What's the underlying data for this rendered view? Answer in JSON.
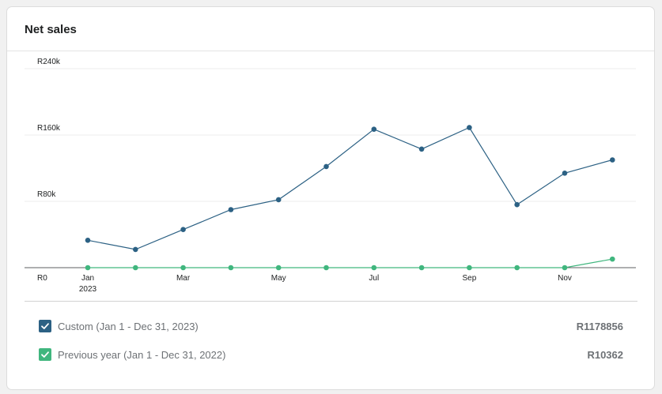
{
  "card": {
    "title": "Net sales"
  },
  "legend": {
    "items": [
      {
        "label": "Custom (Jan 1 - Dec 31, 2023)",
        "value": "R1178856",
        "color": "#2c6184"
      },
      {
        "label": "Previous year (Jan 1 - Dec 31, 2022)",
        "value": "R10362",
        "color": "#40b67e"
      }
    ]
  },
  "chart_data": {
    "type": "line",
    "title": "Net sales",
    "xlabel": "",
    "ylabel": "",
    "ylim": [
      0,
      240000
    ],
    "y_ticks": [
      {
        "value": 0,
        "label": "R0"
      },
      {
        "value": 80000,
        "label": "R80k"
      },
      {
        "value": 160000,
        "label": "R160k"
      },
      {
        "value": 240000,
        "label": "R240k"
      }
    ],
    "x": [
      "Jan",
      "Feb",
      "Mar",
      "Apr",
      "May",
      "Jun",
      "Jul",
      "Aug",
      "Sep",
      "Oct",
      "Nov",
      "Dec"
    ],
    "x_tick_labels": [
      {
        "index": 0,
        "label": "Jan",
        "sublabel": "2023"
      },
      {
        "index": 2,
        "label": "Mar"
      },
      {
        "index": 4,
        "label": "May"
      },
      {
        "index": 6,
        "label": "Jul"
      },
      {
        "index": 8,
        "label": "Sep"
      },
      {
        "index": 10,
        "label": "Nov"
      }
    ],
    "grid": true,
    "legend_position": "bottom",
    "series": [
      {
        "name": "Custom (Jan 1 - Dec 31, 2023)",
        "color": "#2c6184",
        "values": [
          33000,
          22000,
          46000,
          70000,
          82000,
          122000,
          167000,
          143000,
          169000,
          76000,
          114000,
          130000
        ]
      },
      {
        "name": "Previous year (Jan 1 - Dec 31, 2022)",
        "color": "#40b67e",
        "values": [
          0,
          0,
          0,
          0,
          0,
          0,
          0,
          0,
          0,
          0,
          0,
          10362
        ]
      }
    ]
  }
}
